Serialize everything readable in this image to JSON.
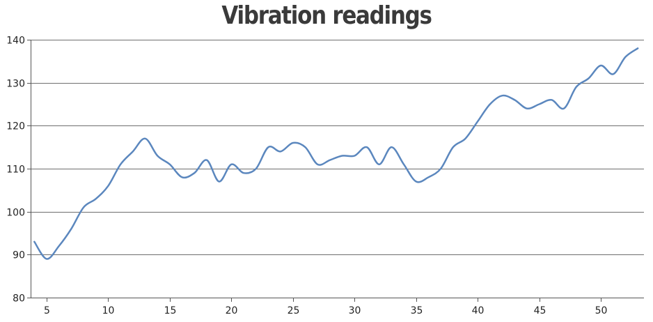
{
  "chart_data": {
    "type": "line",
    "title": "Vibration readings",
    "xlabel": "",
    "ylabel": "",
    "xlim": [
      3.7,
      53.5
    ],
    "ylim": [
      80,
      140
    ],
    "x_ticks": [
      5,
      10,
      15,
      20,
      25,
      30,
      35,
      40,
      45,
      50
    ],
    "y_ticks": [
      80,
      90,
      100,
      110,
      120,
      130,
      140
    ],
    "grid": "horizontal",
    "line_color": "#5b87be",
    "series": [
      {
        "x": [
          4,
          5,
          6,
          7,
          8,
          9,
          10,
          11,
          12,
          13,
          14,
          15,
          16,
          17,
          18,
          19,
          20,
          21,
          22,
          23,
          24,
          25,
          26,
          27,
          28,
          29,
          30,
          31,
          32,
          33,
          34,
          35,
          36,
          37,
          38,
          39,
          40,
          41,
          42,
          43,
          44,
          45,
          46,
          47,
          48,
          49,
          50,
          51,
          52,
          53
        ],
        "values": [
          93,
          89,
          92,
          96,
          101,
          103,
          106,
          111,
          114,
          117,
          113,
          111,
          108,
          109,
          112,
          107,
          111,
          109,
          110,
          115,
          114,
          116,
          115,
          111,
          112,
          113,
          113,
          115,
          111,
          115,
          111,
          107,
          108,
          110,
          115,
          117,
          121,
          125,
          127,
          126,
          124,
          125,
          126,
          124,
          129,
          131,
          134,
          132,
          136,
          138
        ]
      }
    ]
  }
}
